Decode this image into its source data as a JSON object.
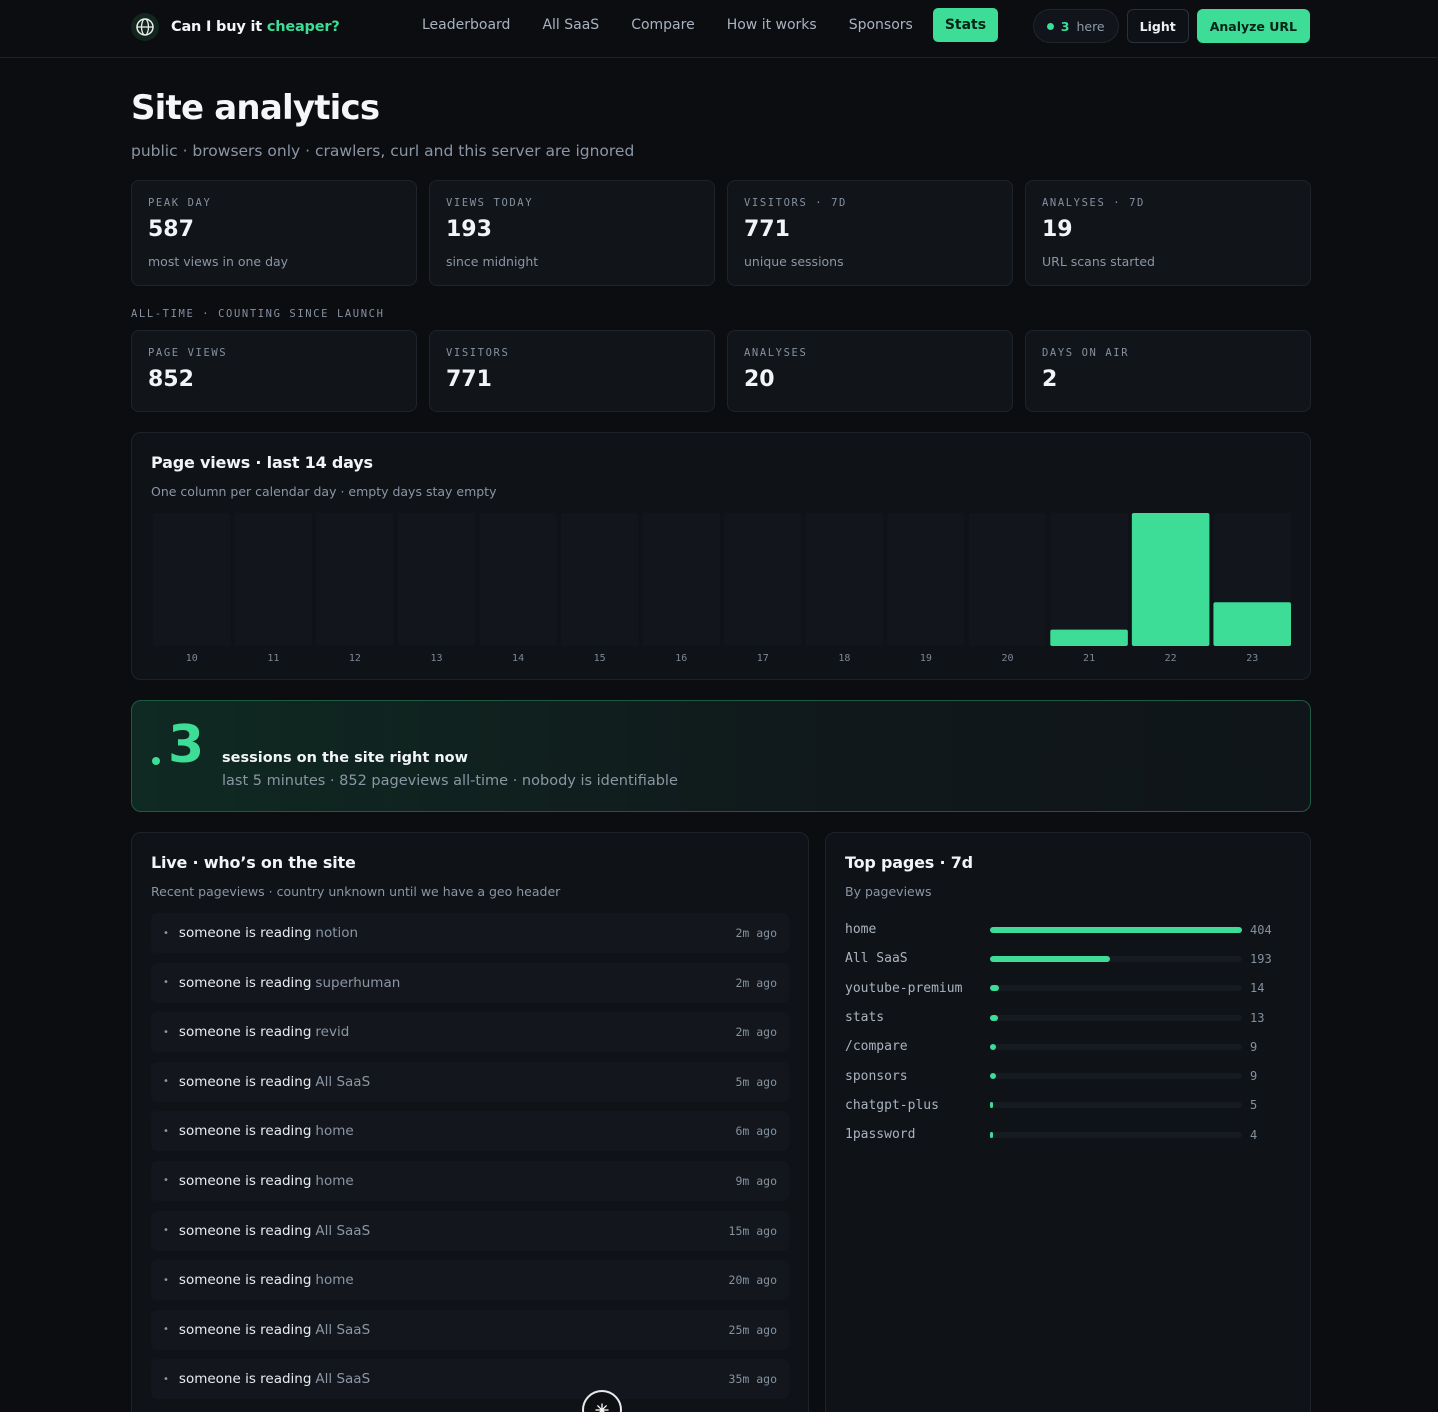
{
  "header": {
    "brand_prefix": "Can I buy it",
    "brand_accent": "cheaper?",
    "nav": [
      "Leaderboard",
      "All SaaS",
      "Compare",
      "How it works",
      "Sponsors",
      "Stats"
    ],
    "active_nav": "Stats",
    "here_count": "3",
    "here_label": "here",
    "theme_button": "Light",
    "analyze_button": "Analyze URL"
  },
  "page": {
    "title": "Site analytics",
    "subtitle": "public · browsers only · crawlers, curl and this server are ignored"
  },
  "summary_cards": [
    {
      "label": "PEAK DAY",
      "value": "587",
      "note": "most views in one day"
    },
    {
      "label": "VIEWS TODAY",
      "value": "193",
      "note": "since midnight"
    },
    {
      "label": "VISITORS · 7D",
      "value": "771",
      "note": "unique sessions"
    },
    {
      "label": "ANALYSES · 7D",
      "value": "19",
      "note": "URL scans started"
    }
  ],
  "alltime_label": "ALL-TIME · COUNTING SINCE LAUNCH",
  "alltime_cards": [
    {
      "label": "PAGE VIEWS",
      "value": "852"
    },
    {
      "label": "VISITORS",
      "value": "771"
    },
    {
      "label": "ANALYSES",
      "value": "20"
    },
    {
      "label": "DAYS ON AIR",
      "value": "2"
    }
  ],
  "chart_panel": {
    "title": "Page views · last 14 days",
    "description": "One column per calendar day · empty days stay empty"
  },
  "chart_data": {
    "type": "bar",
    "categories": [
      "10",
      "11",
      "12",
      "13",
      "14",
      "15",
      "16",
      "17",
      "18",
      "19",
      "20",
      "21",
      "22",
      "23"
    ],
    "values": [
      0,
      0,
      0,
      0,
      0,
      0,
      0,
      0,
      0,
      0,
      0,
      72,
      587,
      193
    ],
    "title": "Page views · last 14 days",
    "ylim": [
      0,
      587
    ],
    "grid": false,
    "colors": {
      "bar": "#3ddc97",
      "empty": "#12161c"
    }
  },
  "live_banner": {
    "count": "3",
    "headline": "sessions on the site right now",
    "detail": "last 5 minutes · 852 pageviews all-time · nobody is identifiable"
  },
  "live_panel": {
    "title": "Live · who’s on the site",
    "description": "Recent pageviews · country unknown until we have a geo header",
    "prefix": "someone is reading",
    "rows": [
      {
        "page": "notion",
        "ago": "2m ago"
      },
      {
        "page": "superhuman",
        "ago": "2m ago"
      },
      {
        "page": "revid",
        "ago": "2m ago"
      },
      {
        "page": "All SaaS",
        "ago": "5m ago"
      },
      {
        "page": "home",
        "ago": "6m ago"
      },
      {
        "page": "home",
        "ago": "9m ago"
      },
      {
        "page": "All SaaS",
        "ago": "15m ago"
      },
      {
        "page": "home",
        "ago": "20m ago"
      },
      {
        "page": "All SaaS",
        "ago": "25m ago"
      },
      {
        "page": "All SaaS",
        "ago": "35m ago"
      }
    ]
  },
  "top_pages": {
    "title": "Top pages · 7d",
    "description": "By pageviews",
    "max": 404,
    "rows": [
      {
        "name": "home",
        "count": 404
      },
      {
        "name": "All SaaS",
        "count": 193
      },
      {
        "name": "youtube-premium",
        "count": 14
      },
      {
        "name": "stats",
        "count": 13
      },
      {
        "name": "/compare",
        "count": 9
      },
      {
        "name": "sponsors",
        "count": 9
      },
      {
        "name": "chatgpt-plus",
        "count": 5
      },
      {
        "name": "1password",
        "count": 4
      }
    ]
  },
  "colors": {
    "accent": "#3ddc97",
    "background": "#0b0d11"
  },
  "icons": {
    "brand": "globe-icon",
    "live": "live-dot-icon",
    "fab": "sparkle-icon"
  }
}
